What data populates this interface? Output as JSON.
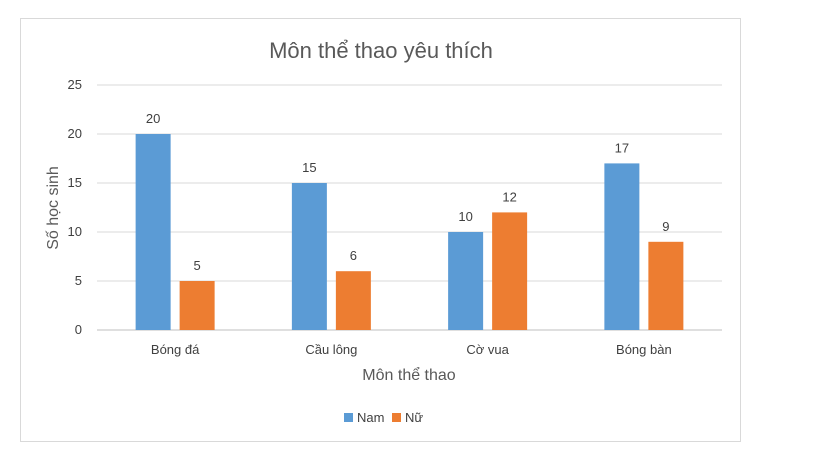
{
  "chart_data": {
    "type": "bar",
    "title": "Môn thể thao yêu thích",
    "xlabel": "Môn thể thao",
    "ylabel": "Số học sinh",
    "categories": [
      "Bóng đá",
      "Cầu lông",
      "Cờ vua",
      "Bóng bàn"
    ],
    "series": [
      {
        "name": "Nam",
        "values": [
          20,
          15,
          10,
          17
        ],
        "color": "#5b9bd5"
      },
      {
        "name": "Nữ",
        "values": [
          5,
          6,
          12,
          9
        ],
        "color": "#ed7d31"
      }
    ],
    "ylim": [
      0,
      25
    ],
    "yticks": [
      "0",
      "5",
      "10",
      "15",
      "20",
      "25"
    ],
    "grid": true,
    "legend_position": "bottom",
    "data_labels": true
  }
}
